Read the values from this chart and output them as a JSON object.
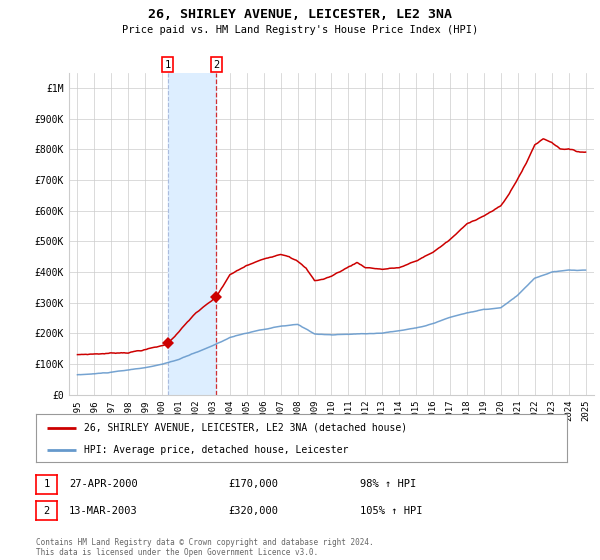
{
  "title_line1": "26, SHIRLEY AVENUE, LEICESTER, LE2 3NA",
  "title_line2": "Price paid vs. HM Land Registry's House Price Index (HPI)",
  "legend_line1": "26, SHIRLEY AVENUE, LEICESTER, LE2 3NA (detached house)",
  "legend_line2": "HPI: Average price, detached house, Leicester",
  "annotation_footer": "Contains HM Land Registry data © Crown copyright and database right 2024.\nThis data is licensed under the Open Government Licence v3.0.",
  "transaction1_label": "1",
  "transaction1_date": "27-APR-2000",
  "transaction1_price": "£170,000",
  "transaction1_hpi": "98% ↑ HPI",
  "transaction2_label": "2",
  "transaction2_date": "13-MAR-2003",
  "transaction2_price": "£320,000",
  "transaction2_hpi": "105% ↑ HPI",
  "sale1_year": 2000.32,
  "sale1_price": 170000,
  "sale2_year": 2003.2,
  "sale2_price": 320000,
  "red_color": "#cc0000",
  "blue_color": "#6699cc",
  "shade_color": "#ddeeff",
  "grid_color": "#cccccc",
  "bg_color": "#ffffff",
  "ylim_max": 1050000,
  "xlim_min": 1994.5,
  "xlim_max": 2025.5
}
